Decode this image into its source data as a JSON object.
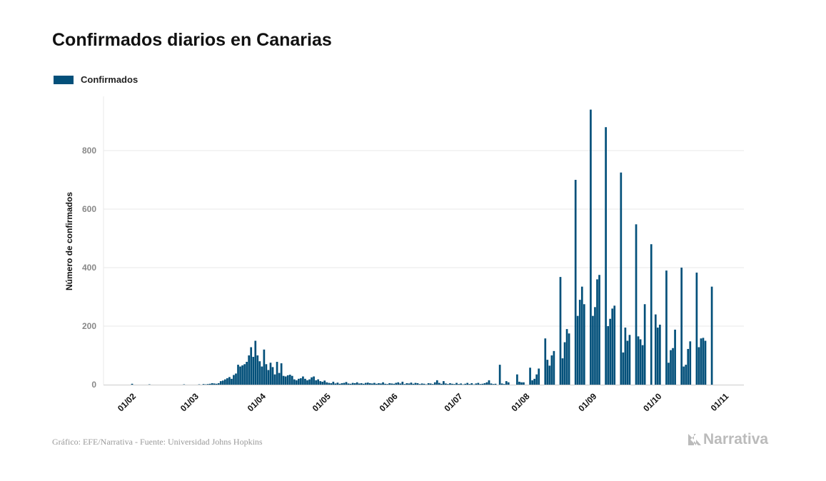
{
  "chart_data": {
    "type": "bar",
    "title": "Confirmados diarios en Canarias",
    "ylabel": "Número de confirmados",
    "xlabel": "",
    "ylim": [
      0,
      960
    ],
    "yticks": [
      0,
      200,
      400,
      600,
      800
    ],
    "xticks": [
      "01/02",
      "01/03",
      "01/04",
      "01/05",
      "01/06",
      "01/07",
      "01/08",
      "01/09",
      "01/10",
      "01/11"
    ],
    "grid": true,
    "legend_position": "top-left",
    "series": [
      {
        "name": "Confirmados",
        "color": "#03507a",
        "daily_by_month": [
          {
            "month": "02",
            "values": [
              3,
              0,
              0,
              0,
              0,
              0,
              0,
              0,
              1,
              0,
              0,
              0,
              0,
              0,
              0,
              0,
              0,
              0,
              0,
              0,
              0,
              0,
              0,
              0,
              1,
              0,
              0,
              0,
              0
            ]
          },
          {
            "month": "03",
            "values": [
              0,
              0,
              1,
              0,
              2,
              1,
              2,
              3,
              5,
              4,
              3,
              5,
              12,
              14,
              18,
              22,
              26,
              20,
              33,
              38,
              68,
              62,
              66,
              70,
              78,
              100,
              128,
              95,
              150,
              100,
              80
            ]
          },
          {
            "month": "04",
            "values": [
              62,
              120,
              70,
              50,
              75,
              60,
              35,
              78,
              40,
              73,
              30,
              28,
              32,
              34,
              30,
              18,
              15,
              20,
              22,
              28,
              20,
              15,
              18,
              25,
              28,
              15,
              18,
              12,
              10,
              14
            ]
          },
          {
            "month": "05",
            "values": [
              8,
              6,
              5,
              10,
              4,
              7,
              3,
              5,
              6,
              9,
              4,
              3,
              6,
              5,
              8,
              4,
              5,
              3,
              6,
              7,
              5,
              4,
              6,
              3,
              5,
              4,
              8,
              3,
              2,
              5,
              4
            ]
          },
          {
            "month": "06",
            "values": [
              3,
              6,
              8,
              4,
              10,
              2,
              5,
              4,
              7,
              3,
              6,
              5,
              2,
              4,
              3,
              1,
              5,
              4,
              2,
              8,
              15,
              6,
              3,
              12,
              4,
              2,
              5,
              3,
              2,
              6
            ]
          },
          {
            "month": "07",
            "values": [
              2,
              4,
              1,
              3,
              6,
              2,
              5,
              1,
              4,
              6,
              2,
              3,
              5,
              8,
              15,
              4,
              2,
              3,
              0,
              68,
              4,
              2,
              12,
              8,
              0,
              0,
              0,
              35,
              10,
              8,
              8
            ]
          },
          {
            "month": "08",
            "values": [
              0,
              0,
              58,
              15,
              20,
              35,
              55,
              0,
              0,
              158,
              85,
              65,
              100,
              115,
              0,
              0,
              368,
              90,
              145,
              190,
              175,
              0,
              0,
              700,
              235,
              290,
              335,
              275,
              0,
              0,
              940
            ]
          },
          {
            "month": "09",
            "values": [
              235,
              265,
              360,
              375,
              0,
              0,
              880,
              200,
              225,
              260,
              270,
              0,
              0,
              725,
              110,
              195,
              150,
              170,
              0,
              0,
              548,
              165,
              155,
              135,
              275,
              0,
              0,
              480,
              0,
              240
            ]
          },
          {
            "month": "10",
            "values": [
              195,
              205,
              0,
              0,
              390,
              75,
              118,
              125,
              188,
              0,
              0,
              400,
              62,
              68,
              122,
              148,
              0,
              0,
              383,
              128,
              158,
              160,
              150,
              0,
              0,
              335
            ]
          }
        ]
      }
    ]
  },
  "footer": {
    "source": "Gráfico: EFE/Narrativa - Fuente: Universidad Johns Hopkins",
    "logo": "Narrativa"
  }
}
